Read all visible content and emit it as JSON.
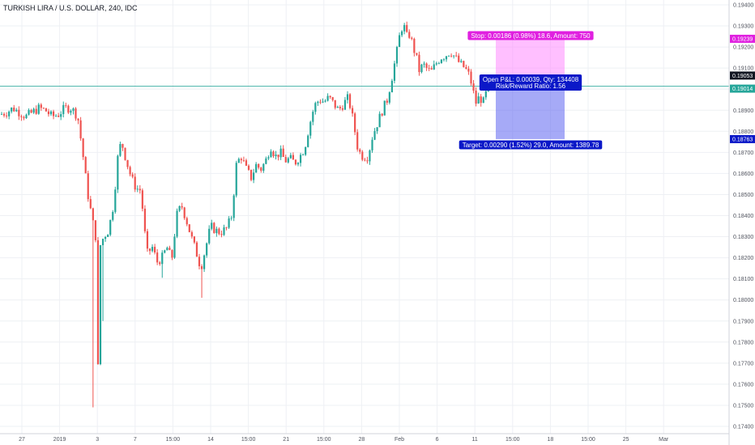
{
  "chart_data": {
    "type": "candlestick",
    "title": "TURKISH LIRA / U.S. DOLLAR, 240, IDC",
    "ylim": [
      0.174,
      0.194
    ],
    "y_ticks": [
      "0.19400",
      "0.19300",
      "0.19200",
      "0.19100",
      "0.19000",
      "0.18900",
      "0.18800",
      "0.18700",
      "0.18600",
      "0.18500",
      "0.18400",
      "0.18300",
      "0.18200",
      "0.18100",
      "0.18000",
      "0.17900",
      "0.17800",
      "0.17700",
      "0.17600",
      "0.17500",
      "0.17400"
    ],
    "x_ticks": [
      "27",
      "2019",
      "3",
      "7",
      "15:00",
      "14",
      "15:00",
      "21",
      "15:00",
      "28",
      "Feb",
      "6",
      "11",
      "15:00",
      "18",
      "15:00",
      "25",
      "Mar"
    ],
    "price_labels": {
      "stop_level": "0.19239",
      "last_price": "0.19053",
      "entry": "0.19014",
      "target_level": "0.18763"
    },
    "position": {
      "entry": 0.19014,
      "stop": 0.19239,
      "target": 0.18763,
      "stop_label": "Stop: 0.00186 (0.98%) 18.6, Amount: 750",
      "open_pl_label": "Open P&L: 0.00039, Qty: 134408",
      "rr_label": "Risk/Reward Ratio: 1.56",
      "target_label": "Target: 0.00290 (1.52%) 29.0, Amount: 1389.78"
    },
    "close_path": [
      [
        0,
        0.1888
      ],
      [
        8,
        0.1889
      ],
      [
        16,
        0.1891
      ],
      [
        24,
        0.1889
      ],
      [
        32,
        0.1887
      ],
      [
        40,
        0.1889
      ],
      [
        48,
        0.1891
      ],
      [
        56,
        0.189
      ],
      [
        64,
        0.1887
      ],
      [
        72,
        0.1888
      ],
      [
        80,
        0.1891
      ],
      [
        88,
        0.1891
      ],
      [
        96,
        0.1887
      ],
      [
        102,
        0.187
      ],
      [
        108,
        0.1851
      ],
      [
        114,
        0.1838
      ],
      [
        118,
        0.183
      ],
      [
        120,
        0.175
      ],
      [
        124,
        0.1826
      ],
      [
        128,
        0.183
      ],
      [
        134,
        0.1833
      ],
      [
        140,
        0.1845
      ],
      [
        146,
        0.187
      ],
      [
        150,
        0.1875
      ],
      [
        156,
        0.1866
      ],
      [
        162,
        0.1858
      ],
      [
        168,
        0.1853
      ],
      [
        174,
        0.1852
      ],
      [
        178,
        0.1834
      ],
      [
        182,
        0.1822
      ],
      [
        188,
        0.1825
      ],
      [
        194,
        0.1818
      ],
      [
        200,
        0.182
      ],
      [
        206,
        0.1825
      ],
      [
        212,
        0.1819
      ],
      [
        218,
        0.184
      ],
      [
        224,
        0.1845
      ],
      [
        230,
        0.1838
      ],
      [
        236,
        0.183
      ],
      [
        242,
        0.1823
      ],
      [
        248,
        0.1815
      ],
      [
        254,
        0.1825
      ],
      [
        260,
        0.1835
      ],
      [
        266,
        0.1833
      ],
      [
        272,
        0.1832
      ],
      [
        280,
        0.1834
      ],
      [
        286,
        0.184
      ],
      [
        292,
        0.1865
      ],
      [
        298,
        0.1868
      ],
      [
        304,
        0.1862
      ],
      [
        310,
        0.1858
      ],
      [
        316,
        0.1864
      ],
      [
        322,
        0.1862
      ],
      [
        328,
        0.1866
      ],
      [
        334,
        0.1873
      ],
      [
        340,
        0.1868
      ],
      [
        346,
        0.187
      ],
      [
        352,
        0.1866
      ],
      [
        358,
        0.1867
      ],
      [
        364,
        0.1865
      ],
      [
        370,
        0.1868
      ],
      [
        376,
        0.1872
      ],
      [
        382,
        0.1883
      ],
      [
        388,
        0.1892
      ],
      [
        394,
        0.1895
      ],
      [
        400,
        0.1894
      ],
      [
        406,
        0.1896
      ],
      [
        412,
        0.1893
      ],
      [
        418,
        0.189
      ],
      [
        424,
        0.1893
      ],
      [
        430,
        0.1896
      ],
      [
        436,
        0.1885
      ],
      [
        442,
        0.1871
      ],
      [
        448,
        0.1868
      ],
      [
        454,
        0.1868
      ],
      [
        460,
        0.1878
      ],
      [
        466,
        0.1884
      ],
      [
        472,
        0.189
      ],
      [
        478,
        0.1895
      ],
      [
        484,
        0.1906
      ],
      [
        490,
        0.1918
      ],
      [
        494,
        0.1927
      ],
      [
        498,
        0.1931
      ],
      [
        502,
        0.1925
      ],
      [
        506,
        0.1926
      ],
      [
        510,
        0.192
      ],
      [
        514,
        0.1915
      ],
      [
        518,
        0.1908
      ],
      [
        522,
        0.1912
      ],
      [
        526,
        0.191
      ],
      [
        532,
        0.1908
      ],
      [
        538,
        0.1912
      ],
      [
        544,
        0.1915
      ],
      [
        550,
        0.1916
      ],
      [
        556,
        0.1918
      ],
      [
        562,
        0.1915
      ],
      [
        568,
        0.1912
      ],
      [
        574,
        0.191
      ],
      [
        580,
        0.1906
      ],
      [
        584,
        0.1899
      ],
      [
        588,
        0.1893
      ],
      [
        592,
        0.1897
      ],
      [
        596,
        0.1893
      ],
      [
        600,
        0.1898
      ],
      [
        604,
        0.19
      ],
      [
        608,
        0.1901
      ]
    ]
  }
}
